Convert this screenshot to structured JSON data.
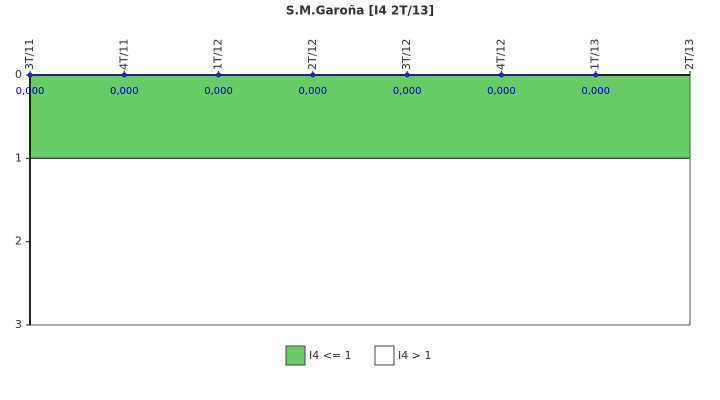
{
  "chart_data": {
    "type": "line",
    "title": "S.M.Garoña [I4 2T/13]",
    "categories": [
      "3T/11",
      "4T/11",
      "1T/12",
      "2T/12",
      "3T/12",
      "4T/12",
      "1T/13",
      "2T/13"
    ],
    "values": [
      0,
      0,
      0,
      0,
      0,
      0,
      0,
      null
    ],
    "value_labels": [
      "0,000",
      "0,000",
      "0,000",
      "0,000",
      "0,000",
      "0,000",
      "0,000",
      null
    ],
    "color": "#2222bb",
    "ylim": [
      0,
      3
    ],
    "yticks": [
      0,
      1,
      2,
      3
    ],
    "y_reversed": true,
    "bands": [
      {
        "name": "I4 <= 1",
        "color": "#66cc66",
        "range": [
          0,
          1
        ]
      },
      {
        "name": "I4 > 1",
        "color": "#ffffff",
        "range": [
          1,
          3
        ]
      }
    ]
  }
}
